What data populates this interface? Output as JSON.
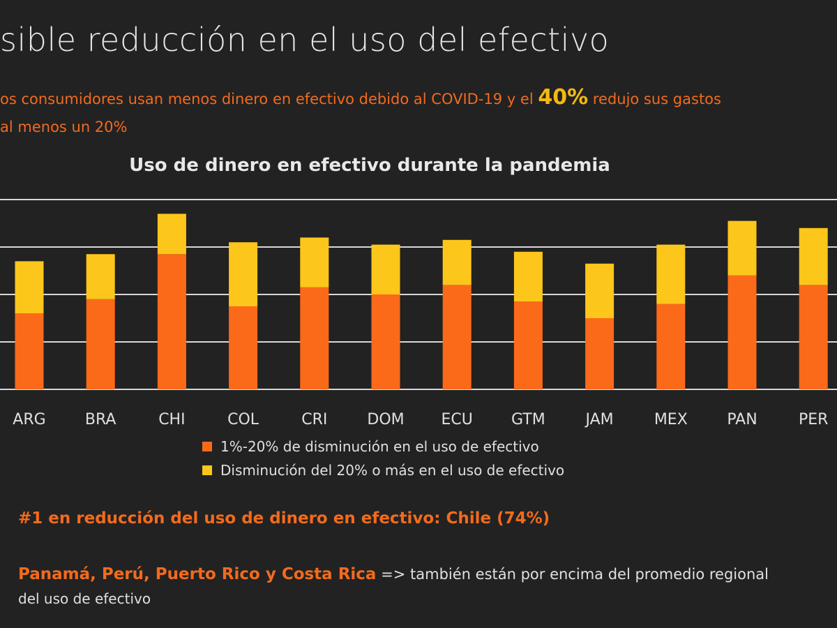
{
  "header": {
    "title": "sible reducción en el uso del efectivo",
    "sub_a": "os consumidores usan menos dinero en efectivo debido al COVID-19 y el ",
    "sub_pct": "40%",
    "sub_b": " redujo sus gastos",
    "sub_line2": "al menos un 20%"
  },
  "colors": {
    "orange": "#fb6a19",
    "yellow": "#fdc61a"
  },
  "chart_data": {
    "type": "bar",
    "stacked": true,
    "title": "Uso de dinero en efectivo durante la pandemia",
    "categories": [
      "ARG",
      "BRA",
      "CHI",
      "COL",
      "CRI",
      "DOM",
      "ECU",
      "GTM",
      "JAM",
      "MEX",
      "PAN",
      "PER"
    ],
    "series": [
      {
        "name": "1%-20% de disminución en el uso de efectivo",
        "values": [
          32,
          38,
          57,
          35,
          43,
          40,
          44,
          37,
          30,
          36,
          48,
          44
        ]
      },
      {
        "name": "Disminución del 20% o más en el uso de efectivo",
        "values": [
          22,
          19,
          17,
          27,
          21,
          21,
          19,
          21,
          23,
          25,
          23,
          24
        ]
      }
    ],
    "ylim": [
      0,
      80
    ],
    "grid": true,
    "legend_position": "bottom"
  },
  "notes": {
    "rank": "#1 en reducción del uso de dinero en efectivo: Chile (74%)",
    "countries": "Panamá, Perú, Puerto Rico y Costa Rica",
    "arrow": " =>  ",
    "rest": "también están por encima del promedio regional",
    "line2": "del uso de efectivo"
  }
}
